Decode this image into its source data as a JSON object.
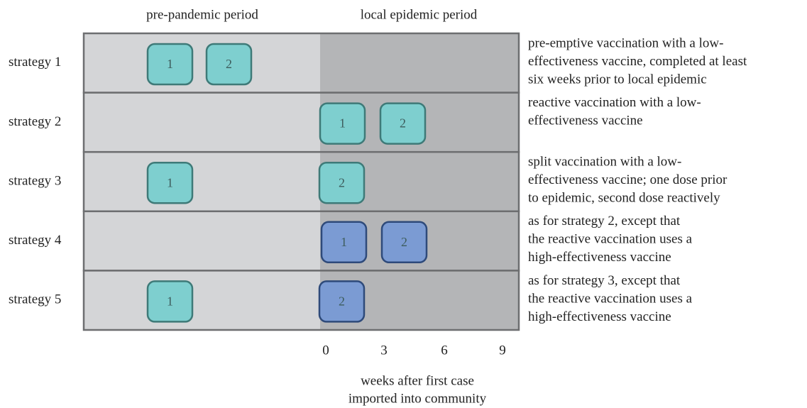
{
  "headers": [
    "pre-pandemic period",
    "local epidemic period"
  ],
  "axis": {
    "ticks": [
      "0",
      "3",
      "6",
      "9"
    ],
    "label": [
      "weeks after first case",
      "imported into community"
    ]
  },
  "strategies": [
    {
      "label": "strategy 1",
      "doses": [
        {
          "label": "1",
          "color": "#7ecfcf"
        },
        {
          "label": "2",
          "color": "#7ecfcf"
        }
      ],
      "description": [
        "pre-emptive vaccination with a low-",
        "effectiveness vaccine, completed at least",
        "six weeks prior to local epidemic"
      ]
    },
    {
      "label": "strategy 2",
      "doses": [
        {
          "label": "1",
          "color": "#7ecfcf"
        },
        {
          "label": "2",
          "color": "#7ecfcf"
        }
      ],
      "description": [
        "reactive vaccination with a low-",
        "effectiveness vaccine"
      ]
    },
    {
      "label": "strategy 3",
      "doses": [
        {
          "label": "1",
          "color": "#7ecfcf"
        },
        {
          "label": "2",
          "color": "#7ecfcf"
        }
      ],
      "description": [
        "split vaccination with a low-",
        "effectiveness vaccine; one dose prior",
        "to epidemic, second dose reactively"
      ]
    },
    {
      "label": "strategy 4",
      "doses": [
        {
          "label": "1",
          "color": "#7b9bd3"
        },
        {
          "label": "2",
          "color": "#7b9bd3"
        }
      ],
      "description": [
        "as for strategy 2, except that",
        "the reactive vaccination uses a",
        "high-effectiveness vaccine"
      ]
    },
    {
      "label": "strategy 5",
      "doses": [
        {
          "label": "1",
          "color": "#7ecfcf"
        },
        {
          "label": "2",
          "color": "#7b9bd3"
        }
      ],
      "description": [
        "as for strategy 3, except that",
        "the reactive vaccination uses a",
        "high-effectiveness vaccine"
      ]
    }
  ]
}
